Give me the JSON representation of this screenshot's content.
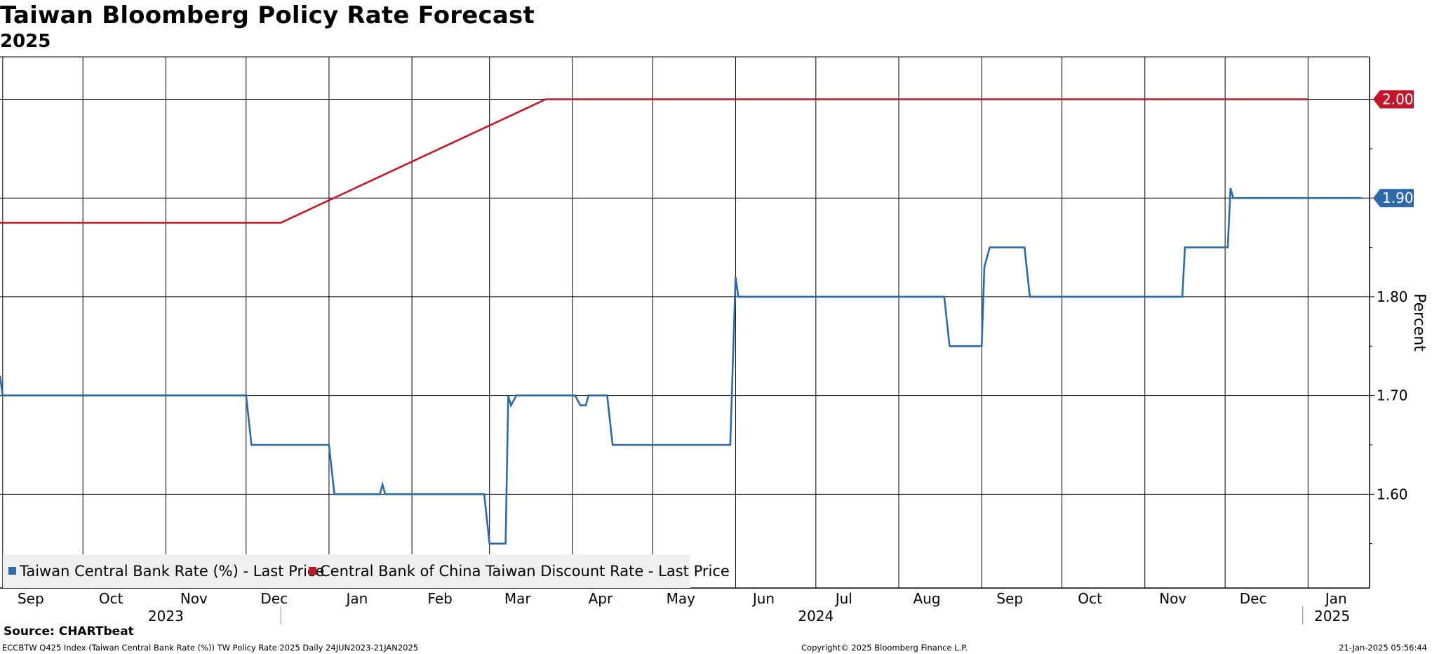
{
  "header": {
    "title": "Taiwan Bloomberg Policy Rate Forecast",
    "subtitle": "2025"
  },
  "footer": {
    "source": "Source: CHARTbeat",
    "ticker_info": "ECCBTW Q425 Index (Taiwan Central Bank Rate (%)) TW Policy Rate 2025  Daily 24JUN2023-21JAN2025",
    "copyright": "Copyright© 2025 Bloomberg Finance L.P.",
    "timestamp": "21-Jan-2025 05:56:44"
  },
  "colors": {
    "series_blue": "#2e6aa7",
    "series_red": "#c0172b",
    "grid": "#000000",
    "legend_bg": "#f0f0f0"
  },
  "chart_data": {
    "type": "line",
    "title": "Taiwan Bloomberg Policy Rate Forecast",
    "subtitle": "2025",
    "ylabel": "Percent",
    "ylim": [
      1.505,
      2.043
    ],
    "yticks": [
      "1.60",
      "1.70",
      "1.80",
      "1.90",
      "2.00"
    ],
    "xlim": [
      "2023-08-31",
      "2025-01-24"
    ],
    "month_ticks": [
      {
        "label": "Sep",
        "date": "2023-09-01"
      },
      {
        "label": "Oct",
        "date": "2023-10-01"
      },
      {
        "label": "Nov",
        "date": "2023-11-01"
      },
      {
        "label": "Dec",
        "date": "2023-12-01"
      },
      {
        "label": "Jan",
        "date": "2024-01-01"
      },
      {
        "label": "Feb",
        "date": "2024-02-01"
      },
      {
        "label": "Mar",
        "date": "2024-03-01"
      },
      {
        "label": "Apr",
        "date": "2024-04-01"
      },
      {
        "label": "May",
        "date": "2024-05-01"
      },
      {
        "label": "Jun",
        "date": "2024-06-01"
      },
      {
        "label": "Jul",
        "date": "2024-07-01"
      },
      {
        "label": "Aug",
        "date": "2024-08-01"
      },
      {
        "label": "Sep",
        "date": "2024-09-01"
      },
      {
        "label": "Oct",
        "date": "2024-10-01"
      },
      {
        "label": "Nov",
        "date": "2024-11-01"
      },
      {
        "label": "Dec",
        "date": "2024-12-01"
      },
      {
        "label": "Jan",
        "date": "2025-01-01"
      }
    ],
    "year_labels": [
      {
        "label": "2023",
        "date": "2023-11-01"
      },
      {
        "label": "2024",
        "date": "2024-07-01"
      },
      {
        "label": "2025",
        "date": "2025-01-10"
      }
    ],
    "year_separators": [
      "2023-12-14",
      "2024-12-30"
    ],
    "legend_position": "bottom-left",
    "series": [
      {
        "name": "Taiwan Central Bank Rate (%) - Last Price",
        "color": "#2e6aa7",
        "end_label": "1.90",
        "points": [
          [
            "2023-08-31",
            1.72
          ],
          [
            "2023-09-01",
            1.7
          ],
          [
            "2023-12-01",
            1.7
          ],
          [
            "2023-12-03",
            1.65
          ],
          [
            "2024-01-01",
            1.65
          ],
          [
            "2024-01-03",
            1.6
          ],
          [
            "2024-01-20",
            1.6
          ],
          [
            "2024-01-21",
            1.61
          ],
          [
            "2024-01-22",
            1.6
          ],
          [
            "2024-02-28",
            1.6
          ],
          [
            "2024-03-01",
            1.55
          ],
          [
            "2024-03-07",
            1.55
          ],
          [
            "2024-03-08",
            1.7
          ],
          [
            "2024-03-09",
            1.69
          ],
          [
            "2024-03-11",
            1.7
          ],
          [
            "2024-04-02",
            1.7
          ],
          [
            "2024-04-04",
            1.69
          ],
          [
            "2024-04-06",
            1.69
          ],
          [
            "2024-04-07",
            1.7
          ],
          [
            "2024-04-14",
            1.7
          ],
          [
            "2024-04-16",
            1.65
          ],
          [
            "2024-05-30",
            1.65
          ],
          [
            "2024-06-01",
            1.82
          ],
          [
            "2024-06-02",
            1.8
          ],
          [
            "2024-08-18",
            1.8
          ],
          [
            "2024-08-20",
            1.75
          ],
          [
            "2024-09-01",
            1.75
          ],
          [
            "2024-09-02",
            1.83
          ],
          [
            "2024-09-04",
            1.85
          ],
          [
            "2024-09-17",
            1.85
          ],
          [
            "2024-09-19",
            1.8
          ],
          [
            "2024-11-15",
            1.8
          ],
          [
            "2024-11-16",
            1.85
          ],
          [
            "2024-12-02",
            1.85
          ],
          [
            "2024-12-03",
            1.91
          ],
          [
            "2024-12-04",
            1.9
          ],
          [
            "2025-01-21",
            1.9
          ]
        ]
      },
      {
        "name": "Central Bank of China Taiwan Discount Rate - Last Price",
        "color": "#c0172b",
        "end_label": "2.00",
        "points": [
          [
            "2023-08-31",
            1.875
          ],
          [
            "2023-12-14",
            1.875
          ],
          [
            "2024-03-22",
            2.0
          ],
          [
            "2025-01-01",
            2.0
          ]
        ]
      }
    ]
  }
}
